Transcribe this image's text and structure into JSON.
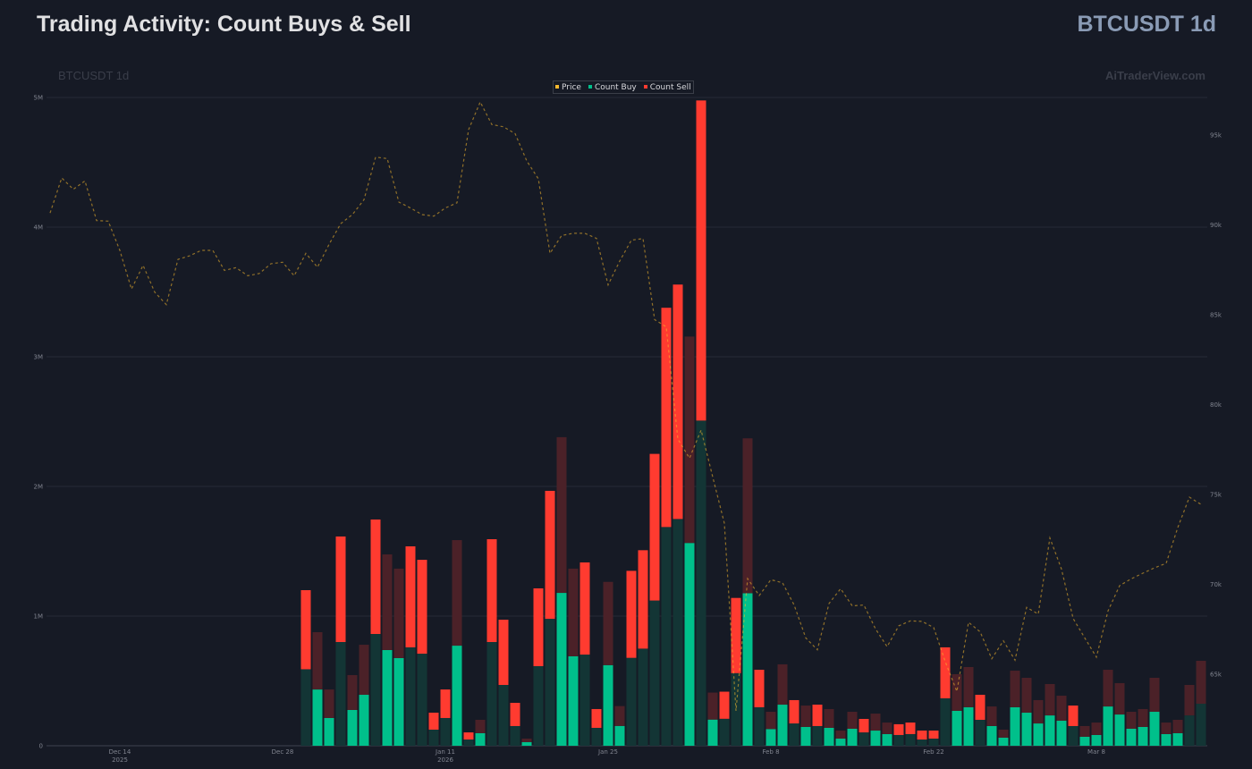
{
  "header": {
    "title": "Trading Activity: Count Buys & Sell",
    "symbol": "BTCUSDT 1d"
  },
  "watermark": {
    "left": "BTCUSDT 1d",
    "right": "AiTraderView.com"
  },
  "colors": {
    "background": "#161a25",
    "buy_bright": "#00c08b",
    "buy_dim": "#133535",
    "sell_bright": "#ff3b30",
    "sell_dim": "#4b2128",
    "price": "#f5b82e",
    "grid": "#272b36"
  },
  "chart_data": {
    "type": "bar",
    "title": "Trading Activity: Count Buys & Sell",
    "legend": [
      {
        "name": "Price",
        "color": "#f5b82e"
      },
      {
        "name": "Count Buy",
        "color": "#00c08b"
      },
      {
        "name": "Count Sell",
        "color": "#ff3b30"
      }
    ],
    "legend_position": "top-center",
    "stacked": true,
    "left_axis": {
      "ticks": [
        0,
        1000000,
        2000000,
        3000000,
        4000000,
        5000000
      ],
      "tick_labels": [
        "0",
        "1M",
        "2M",
        "3M",
        "4M",
        "5M"
      ],
      "ylim": [
        0,
        5000000
      ]
    },
    "right_axis": {
      "ticks": [
        65000,
        70000,
        75000,
        80000,
        85000,
        90000,
        95000
      ],
      "tick_labels": [
        "65k",
        "70k",
        "75k",
        "80k",
        "85k",
        "90k",
        "95k"
      ]
    },
    "x_ticks": [
      {
        "day": 6,
        "label": "Dec 14",
        "sub": "2025"
      },
      {
        "day": 20,
        "label": "Dec 28",
        "sub": ""
      },
      {
        "day": 34,
        "label": "Jan 11",
        "sub": "2026"
      },
      {
        "day": 48,
        "label": "Jan 25",
        "sub": ""
      },
      {
        "day": 62,
        "label": "Feb 8",
        "sub": ""
      },
      {
        "day": 76,
        "label": "Feb 22",
        "sub": ""
      },
      {
        "day": 90,
        "label": "Mar 8",
        "sub": ""
      }
    ],
    "price_start_date": "2025-12-08",
    "bars_start_day": 22,
    "price": [
      90660,
      92610,
      91980,
      92450,
      90240,
      90210,
      88580,
      86430,
      87750,
      86260,
      85560,
      88080,
      88280,
      88580,
      88580,
      87470,
      87620,
      87170,
      87300,
      87840,
      87920,
      87170,
      88420,
      87640,
      88920,
      90070,
      90570,
      91400,
      93770,
      93690,
      91270,
      90940,
      90570,
      90490,
      90940,
      91230,
      95300,
      96840,
      95580,
      95460,
      95080,
      93560,
      92560,
      88420,
      89410,
      89530,
      89530,
      89250,
      86660,
      87990,
      89150,
      89240,
      84730,
      84330,
      78080,
      77020,
      78580,
      75970,
      73400,
      62960,
      70320,
      69380,
      70260,
      70090,
      68850,
      67020,
      66360,
      68930,
      69760,
      68800,
      68850,
      67520,
      66530,
      67690,
      67970,
      67940,
      67600,
      65700,
      64040,
      67890,
      67360,
      65860,
      66860,
      65780,
      68720,
      68350,
      72580,
      70840,
      68100,
      67020,
      65950,
      68520,
      69930,
      70310,
      70620,
      70920,
      71170,
      73160,
      74850,
      74450
    ],
    "series": [
      {
        "name": "Count Buy",
        "values_millions": [
          0.59,
          0.434,
          0.214,
          0.8,
          0.276,
          0.393,
          0.862,
          0.738,
          0.676,
          0.759,
          0.71,
          0.124,
          0.214,
          0.772,
          0.048,
          0.097,
          0.8,
          0.469,
          0.152,
          0.028,
          0.614,
          0.979,
          1.179,
          0.69,
          0.703,
          0.138,
          0.622,
          0.153,
          0.678,
          0.749,
          1.12,
          1.687,
          1.749,
          1.564,
          2.508,
          0.202,
          0.208,
          0.56,
          1.176,
          0.297,
          0.129,
          0.317,
          0.172,
          0.145,
          0.152,
          0.138,
          0.055,
          0.131,
          0.103,
          0.117,
          0.09,
          0.083,
          0.09,
          0.048,
          0.055,
          0.366,
          0.269,
          0.297,
          0.2,
          0.152,
          0.062,
          0.297,
          0.255,
          0.172,
          0.234,
          0.193,
          0.152,
          0.069,
          0.083,
          0.303,
          0.241,
          0.131,
          0.145,
          0.262,
          0.09,
          0.097,
          0.234,
          0.324
        ]
      },
      {
        "name": "Count Sell",
        "values_millions": [
          0.61,
          0.442,
          0.22,
          0.814,
          0.269,
          0.386,
          0.883,
          0.738,
          0.69,
          0.779,
          0.724,
          0.131,
          0.22,
          0.814,
          0.055,
          0.103,
          0.793,
          0.503,
          0.179,
          0.027,
          0.6,
          0.987,
          1.201,
          0.676,
          0.711,
          0.145,
          0.642,
          0.153,
          0.671,
          0.759,
          1.131,
          1.691,
          1.808,
          1.592,
          2.469,
          0.208,
          0.209,
          0.58,
          1.195,
          0.289,
          0.133,
          0.311,
          0.18,
          0.165,
          0.165,
          0.145,
          0.062,
          0.131,
          0.104,
          0.131,
          0.089,
          0.083,
          0.089,
          0.069,
          0.062,
          0.393,
          0.283,
          0.31,
          0.193,
          0.151,
          0.062,
          0.282,
          0.269,
          0.18,
          0.242,
          0.193,
          0.158,
          0.083,
          0.096,
          0.283,
          0.242,
          0.131,
          0.138,
          0.262,
          0.089,
          0.103,
          0.235,
          0.331
        ]
      }
    ],
    "highlight": "sbbsbbsbbssssbsbsssbssbbssbbsssssbsbssbsbbsbsbbbsbbsssssbbsbbbbbbbsbbbbbbbbb"
  }
}
